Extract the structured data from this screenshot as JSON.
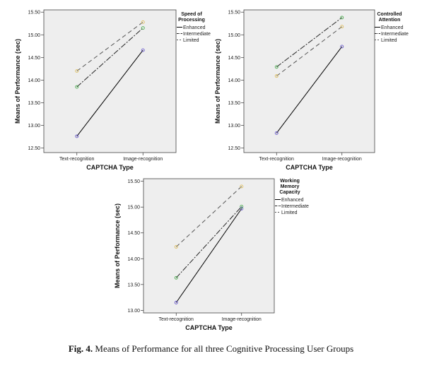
{
  "caption": {
    "label": "Fig. 4.",
    "text": "Means of Performance for all three Cognitive Processing User Groups"
  },
  "colors": {
    "plot_bg": "#eeeeee",
    "enhanced": "#000000",
    "intermediate": "#222222",
    "limited": "#555555",
    "marker_enhanced": "#6a5acd",
    "marker_intermediate": "#4caf50",
    "marker_limited": "#e0c060"
  },
  "chart_data": [
    {
      "type": "line",
      "title": "",
      "xlabel": "CAPTCHA Type",
      "ylabel": "Means of Performance (sec)",
      "categories": [
        "Text-recognition",
        "Image-recognition"
      ],
      "ylim": [
        12.4,
        15.55
      ],
      "yticks": [
        "12.50",
        "13.00",
        "13.50",
        "14.00",
        "14.50",
        "15.00",
        "15.50"
      ],
      "legend_title": [
        "Speed of",
        "Processing"
      ],
      "legend_position": "right",
      "series": [
        {
          "name": "Enhanced",
          "values": [
            12.76,
            14.66
          ]
        },
        {
          "name": "Intermediate",
          "values": [
            13.85,
            15.15
          ]
        },
        {
          "name": "Limited",
          "values": [
            14.2,
            15.28
          ]
        }
      ]
    },
    {
      "type": "line",
      "title": "",
      "xlabel": "CAPTCHA Type",
      "ylabel": "Means of Performance (sec)",
      "categories": [
        "Text-recognition",
        "Image-recognition"
      ],
      "ylim": [
        12.4,
        15.55
      ],
      "yticks": [
        "12.50",
        "13.00",
        "13.50",
        "14.00",
        "14.50",
        "15.00",
        "15.50"
      ],
      "legend_title": [
        "Controlled",
        "Attention"
      ],
      "legend_position": "right",
      "series": [
        {
          "name": "Enhanced",
          "values": [
            12.83,
            14.74
          ]
        },
        {
          "name": "Intermediate",
          "values": [
            14.29,
            15.38
          ]
        },
        {
          "name": "Limited",
          "values": [
            14.09,
            15.18
          ]
        }
      ]
    },
    {
      "type": "line",
      "title": "",
      "xlabel": "CAPTCHA Type",
      "ylabel": "Means of Performance (sec)",
      "categories": [
        "Text-recognition",
        "Image-recognition"
      ],
      "ylim": [
        12.95,
        15.55
      ],
      "yticks": [
        "13.00",
        "13.50",
        "14.00",
        "14.50",
        "15.00",
        "15.50"
      ],
      "legend_title": [
        "Working",
        "Memory",
        "Capacity"
      ],
      "legend_position": "right",
      "series": [
        {
          "name": "Enhanced",
          "values": [
            13.15,
            14.97
          ]
        },
        {
          "name": "Intermediate",
          "values": [
            13.63,
            15.01
          ]
        },
        {
          "name": "Limited",
          "values": [
            14.23,
            15.4
          ]
        }
      ]
    }
  ]
}
